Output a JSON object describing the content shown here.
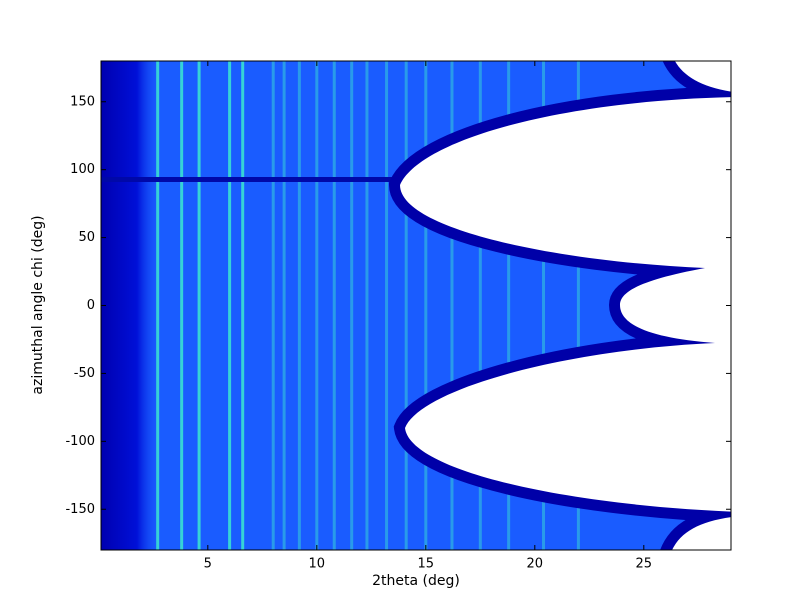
{
  "chart_data": {
    "type": "image",
    "xlabel": "2theta (deg)",
    "ylabel": "azimuthal angle chi (deg)",
    "xlim": [
      0.1,
      29.0
    ],
    "ylim": [
      -180,
      180
    ],
    "xticks": [
      5,
      10,
      15,
      20,
      25
    ],
    "yticks": [
      -150,
      -100,
      -50,
      0,
      50,
      100,
      150
    ],
    "rings": [
      2.7,
      3.8,
      4.6,
      6.0,
      6.6,
      8.0,
      8.5,
      9.2,
      10.0,
      10.8,
      11.6,
      12.3,
      13.2,
      14.1,
      15.0,
      16.2,
      17.5,
      18.8,
      20.4,
      22.0
    ],
    "color": "#1a5cff",
    "ring_color": "#3ce8d0"
  }
}
